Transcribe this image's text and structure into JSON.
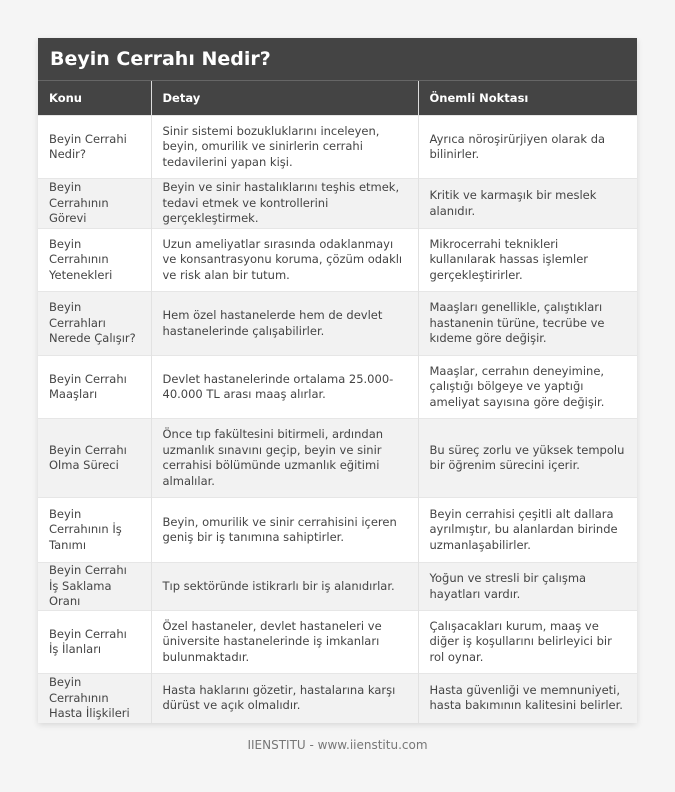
{
  "title": "Beyin Cerrahı Nedir?",
  "headers": [
    "Konu",
    "Detay",
    "Önemli Noktası"
  ],
  "rows": [
    [
      "Beyin Cerrahi Nedir?",
      "Sinir sistemi bozukluklarını inceleyen, beyin, omurilik ve sinirlerin cerrahi tedavilerini yapan kişi.",
      "Ayrıca nöroşirürjiyen olarak da bilinirler."
    ],
    [
      "Beyin Cerrahının Görevi",
      "Beyin ve sinir hastalıklarını teşhis etmek, tedavi etmek ve kontrollerini gerçekleştirmek.",
      "Kritik ve karmaşık bir meslek alanıdır."
    ],
    [
      "Beyin Cerrahının Yetenekleri",
      "Uzun ameliyatlar sırasında odaklanmayı ve konsantrasyonu koruma, çözüm odaklı ve risk alan bir tutum.",
      "Mikrocerrahi teknikleri kullanılarak hassas işlemler gerçekleştirirler."
    ],
    [
      "Beyin Cerrahları Nerede Çalışır?",
      "Hem özel hastanelerde hem de devlet hastanelerinde çalışabilirler.",
      "Maaşları genellikle, çalıştıkları hastanenin türüne, tecrübe ve kıdeme göre değişir."
    ],
    [
      "Beyin Cerrahı Maaşları",
      "Devlet hastanelerinde ortalama 25.000-40.000 TL arası maaş alırlar.",
      "Maaşlar, cerrahın deneyimine, çalıştığı bölgeye ve yaptığı ameliyat sayısına göre değişir."
    ],
    [
      "Beyin Cerrahı Olma Süreci",
      "Önce tıp fakültesini bitirmeli, ardından uzmanlık sınavını geçip, beyin ve sinir cerrahisi bölümünde uzmanlık eğitimi almalılar.",
      "Bu süreç zorlu ve yüksek tempolu bir öğrenim sürecini içerir."
    ],
    [
      "Beyin Cerrahının İş Tanımı",
      "Beyin, omurilik ve sinir cerrahisini içeren geniş bir iş tanımına sahiptirler.",
      "Beyin cerrahisi çeşitli alt dallara ayrılmıştır, bu alanlardan birinde uzmanlaşabilirler."
    ],
    [
      "Beyin Cerrahı İş Saklama Oranı",
      "Tıp sektöründe istikrarlı bir iş alanıdırlar.",
      "Yoğun ve stresli bir çalışma hayatları vardır."
    ],
    [
      "Beyin Cerrahı İş İlanları",
      "Özel hastaneler, devlet hastaneleri ve üniversite hastanelerinde iş imkanları bulunmaktadır.",
      "Çalışacakları kurum, maaş ve diğer iş koşullarını belirleyici bir rol oynar."
    ],
    [
      "Beyin Cerrahının Hasta İlişkileri",
      "Hasta haklarını gözetir, hastalarına karşı dürüst ve açık olmalıdır.",
      "Hasta güvenliği ve memnuniyeti, hasta bakımının kalitesini belirler."
    ]
  ],
  "footer": "IIENSTITU - www.iienstitu.com"
}
